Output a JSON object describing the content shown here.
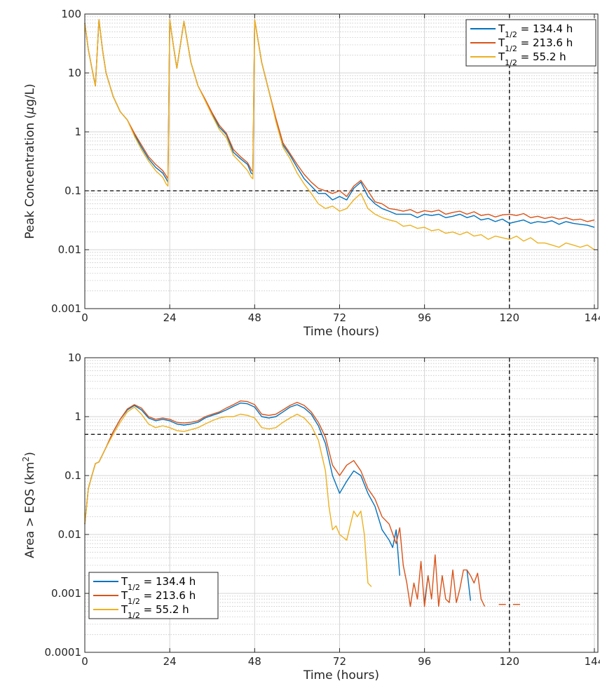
{
  "chart_data": [
    {
      "type": "line",
      "yscale": "log",
      "xlabel": "Time (hours)",
      "ylabel_pre": "Peak Concentration (",
      "ylabel_mu": "μ",
      "ylabel_post": "g/L)",
      "xlim": [
        0,
        145
      ],
      "ylim": [
        0.001,
        100
      ],
      "xticks": [
        "0",
        "24",
        "48",
        "72",
        "96",
        "120",
        "144"
      ],
      "yticks": [
        "0.001",
        "0.01",
        "0.1",
        "1",
        "10",
        "100"
      ],
      "grid": true,
      "legend_position": "top-right",
      "threshold_y": 0.1,
      "marker_x": 120,
      "colors": [
        "#0072BD",
        "#D95319",
        "#EDB120"
      ],
      "legend": [
        {
          "label": "T",
          "sub": "1/2",
          "rest": " = 134.4 h"
        },
        {
          "label": "T",
          "sub": "1/2",
          "rest": " = 213.6 h"
        },
        {
          "label": "T",
          "sub": "1/2",
          "rest": " = 55.2 h"
        }
      ],
      "series": [
        {
          "name": "T1/2 = 134.4 h",
          "x": [
            0,
            1,
            2,
            3,
            4,
            5,
            6,
            8,
            10,
            12,
            14,
            16,
            18,
            20,
            22,
            23,
            23.5,
            24,
            25,
            26,
            28,
            30,
            32,
            34,
            36,
            38,
            40,
            42,
            44,
            46,
            47,
            47.5,
            48,
            50,
            52,
            54,
            56,
            58,
            60,
            62,
            64,
            66,
            68,
            70,
            72,
            74,
            76,
            78,
            80,
            82,
            84,
            86,
            88,
            90,
            92,
            94,
            96,
            98,
            100,
            102,
            104,
            106,
            108,
            110,
            112,
            114,
            116,
            118,
            120,
            122,
            124,
            126,
            128,
            130,
            132,
            134,
            136,
            138,
            140,
            142,
            144
          ],
          "y": [
            70,
            25,
            12,
            6,
            80,
            25,
            10,
            4,
            2.2,
            1.6,
            0.9,
            0.55,
            0.35,
            0.25,
            0.2,
            0.16,
            0.14,
            80,
            30,
            12,
            75,
            15,
            6,
            3.5,
            2,
            1.2,
            0.9,
            0.45,
            0.35,
            0.28,
            0.2,
            0.19,
            80,
            15,
            5,
            1.6,
            0.6,
            0.4,
            0.25,
            0.16,
            0.12,
            0.09,
            0.09,
            0.07,
            0.08,
            0.07,
            0.11,
            0.14,
            0.08,
            0.06,
            0.05,
            0.045,
            0.04,
            0.04,
            0.04,
            0.035,
            0.04,
            0.038,
            0.04,
            0.035,
            0.037,
            0.04,
            0.035,
            0.038,
            0.032,
            0.034,
            0.03,
            0.033,
            0.028,
            0.03,
            0.032,
            0.028,
            0.03,
            0.029,
            0.031,
            0.027,
            0.03,
            0.028,
            0.027,
            0.026,
            0.024
          ]
        },
        {
          "name": "T1/2 = 213.6 h",
          "x": [
            0,
            1,
            2,
            3,
            4,
            5,
            6,
            8,
            10,
            12,
            14,
            16,
            18,
            20,
            22,
            23,
            23.5,
            24,
            25,
            26,
            28,
            30,
            32,
            34,
            36,
            38,
            40,
            42,
            44,
            46,
            47,
            47.5,
            48,
            50,
            52,
            54,
            56,
            58,
            60,
            62,
            64,
            66,
            68,
            70,
            72,
            74,
            76,
            78,
            80,
            82,
            84,
            86,
            88,
            90,
            92,
            94,
            96,
            98,
            100,
            102,
            104,
            106,
            108,
            110,
            112,
            114,
            116,
            118,
            120,
            122,
            124,
            126,
            128,
            130,
            132,
            134,
            136,
            138,
            140,
            142,
            144
          ],
          "y": [
            70,
            25,
            12,
            6,
            80,
            25,
            10,
            4,
            2.2,
            1.6,
            0.95,
            0.6,
            0.38,
            0.28,
            0.22,
            0.18,
            0.16,
            80,
            30,
            12,
            75,
            15,
            6,
            3.6,
            2.1,
            1.3,
            0.95,
            0.5,
            0.38,
            0.3,
            0.23,
            0.21,
            80,
            15,
            5,
            1.7,
            0.65,
            0.43,
            0.28,
            0.19,
            0.14,
            0.11,
            0.1,
            0.09,
            0.1,
            0.08,
            0.12,
            0.15,
            0.1,
            0.065,
            0.06,
            0.05,
            0.048,
            0.045,
            0.048,
            0.042,
            0.046,
            0.044,
            0.047,
            0.04,
            0.043,
            0.045,
            0.04,
            0.044,
            0.038,
            0.04,
            0.036,
            0.039,
            0.04,
            0.038,
            0.041,
            0.035,
            0.037,
            0.034,
            0.036,
            0.033,
            0.035,
            0.032,
            0.033,
            0.03,
            0.032
          ]
        },
        {
          "name": "T1/2 = 55.2 h",
          "x": [
            0,
            1,
            2,
            3,
            4,
            5,
            6,
            8,
            10,
            12,
            14,
            16,
            18,
            20,
            22,
            23,
            23.5,
            24,
            25,
            26,
            28,
            30,
            32,
            34,
            36,
            38,
            40,
            42,
            44,
            46,
            47,
            47.5,
            48,
            50,
            52,
            54,
            56,
            58,
            60,
            62,
            64,
            66,
            68,
            70,
            72,
            74,
            76,
            78,
            80,
            82,
            84,
            86,
            88,
            90,
            92,
            94,
            96,
            98,
            100,
            102,
            104,
            106,
            108,
            110,
            112,
            114,
            116,
            118,
            120,
            122,
            124,
            126,
            128,
            130,
            132,
            134,
            136,
            138,
            140,
            142,
            144
          ],
          "y": [
            70,
            25,
            12,
            6,
            80,
            25,
            10,
            4,
            2.2,
            1.6,
            0.85,
            0.5,
            0.32,
            0.22,
            0.17,
            0.13,
            0.12,
            80,
            30,
            12,
            75,
            15,
            6,
            3.4,
            1.9,
            1.1,
            0.8,
            0.4,
            0.3,
            0.22,
            0.17,
            0.16,
            80,
            15,
            5,
            1.5,
            0.55,
            0.35,
            0.2,
            0.13,
            0.09,
            0.06,
            0.05,
            0.055,
            0.045,
            0.05,
            0.07,
            0.09,
            0.05,
            0.04,
            0.035,
            0.032,
            0.03,
            0.025,
            0.026,
            0.023,
            0.024,
            0.021,
            0.022,
            0.019,
            0.02,
            0.018,
            0.02,
            0.017,
            0.018,
            0.015,
            0.017,
            0.016,
            0.015,
            0.017,
            0.014,
            0.016,
            0.013,
            0.013,
            0.012,
            0.011,
            0.013,
            0.012,
            0.011,
            0.012,
            0.01
          ]
        }
      ]
    },
    {
      "type": "line",
      "yscale": "log",
      "xlabel": "Time (hours)",
      "ylabel_pre": "Area > EQS (km",
      "ylabel_sup": "2",
      "ylabel_post": ")",
      "xlim": [
        0,
        145
      ],
      "ylim": [
        0.0001,
        10
      ],
      "xticks": [
        "0",
        "24",
        "48",
        "72",
        "96",
        "120",
        "144"
      ],
      "yticks": [
        "0.0001",
        "0.001",
        "0.01",
        "0.1",
        "1",
        "10"
      ],
      "grid": true,
      "legend_position": "bottom-left",
      "threshold_y": 0.5,
      "marker_x": 120,
      "colors": [
        "#0072BD",
        "#D95319",
        "#EDB120"
      ],
      "legend": [
        {
          "label": "T",
          "sub": "1/2",
          "rest": " = 134.4 h"
        },
        {
          "label": "T",
          "sub": "1/2",
          "rest": " = 213.6 h"
        },
        {
          "label": "T",
          "sub": "1/2",
          "rest": " = 55.2 h"
        }
      ],
      "series": [
        {
          "name": "T1/2 = 134.4 h",
          "segments": [
            {
              "x": [
                0,
                1,
                2,
                3,
                4,
                6,
                8,
                10,
                12,
                14,
                16,
                18,
                20,
                22,
                24,
                26,
                28,
                30,
                32,
                34,
                36,
                38,
                40,
                42,
                44,
                46,
                48,
                50,
                52,
                54,
                56,
                58,
                60,
                62,
                64,
                66,
                68,
                70,
                72,
                74,
                76,
                78,
                80,
                82,
                84,
                86,
                87,
                88,
                89
              ],
              "y": [
                0.015,
                0.06,
                0.1,
                0.16,
                0.17,
                0.3,
                0.55,
                0.9,
                1.3,
                1.55,
                1.3,
                0.95,
                0.85,
                0.9,
                0.85,
                0.75,
                0.72,
                0.75,
                0.8,
                0.95,
                1.05,
                1.15,
                1.3,
                1.5,
                1.7,
                1.65,
                1.45,
                1.0,
                0.95,
                1.0,
                1.2,
                1.45,
                1.6,
                1.4,
                1.1,
                0.7,
                0.35,
                0.1,
                0.05,
                0.08,
                0.12,
                0.1,
                0.05,
                0.03,
                0.012,
                0.008,
                0.006,
                0.012,
                0.002
              ]
            },
            {
              "x": [
                96,
                97
              ],
              "y": [
                0.0007,
                0.002
              ]
            },
            {
              "x": [
                108,
                109
              ],
              "y": [
                0.0025,
                0.00075
              ]
            }
          ]
        },
        {
          "name": "T1/2 = 213.6 h",
          "segments": [
            {
              "x": [
                0,
                1,
                2,
                3,
                4,
                6,
                8,
                10,
                12,
                14,
                16,
                18,
                20,
                22,
                24,
                26,
                28,
                30,
                32,
                34,
                36,
                38,
                40,
                42,
                44,
                46,
                48,
                50,
                52,
                54,
                56,
                58,
                60,
                62,
                64,
                66,
                68,
                70,
                72,
                74,
                76,
                78,
                80,
                82,
                84,
                86,
                88,
                89,
                90,
                91,
                92,
                93,
                94,
                95,
                96,
                97,
                98,
                99,
                100,
                101,
                102,
                103,
                104,
                105,
                106,
                107,
                108,
                109,
                110,
                111,
                112,
                113
              ],
              "y": [
                0.015,
                0.06,
                0.1,
                0.16,
                0.17,
                0.3,
                0.55,
                0.9,
                1.35,
                1.6,
                1.4,
                1.0,
                0.9,
                0.95,
                0.9,
                0.8,
                0.78,
                0.8,
                0.85,
                1.0,
                1.1,
                1.2,
                1.4,
                1.6,
                1.85,
                1.8,
                1.6,
                1.1,
                1.05,
                1.1,
                1.3,
                1.55,
                1.75,
                1.55,
                1.2,
                0.8,
                0.45,
                0.15,
                0.1,
                0.15,
                0.18,
                0.12,
                0.06,
                0.04,
                0.02,
                0.015,
                0.007,
                0.013,
                0.003,
                0.0015,
                0.0006,
                0.0015,
                0.0008,
                0.0035,
                0.0006,
                0.002,
                0.0008,
                0.0045,
                0.0006,
                0.002,
                0.0008,
                0.0007,
                0.0025,
                0.0007,
                0.0012,
                0.0025,
                0.0025,
                0.002,
                0.0015,
                0.0022,
                0.0008,
                0.0006
              ]
            },
            {
              "x": [
                117,
                118,
                119
              ],
              "y": [
                0.00065,
                0.00065,
                0.00065
              ]
            },
            {
              "x": [
                121,
                122,
                123
              ],
              "y": [
                0.00065,
                0.00065,
                0.00065
              ]
            }
          ]
        },
        {
          "name": "T1/2 = 55.2 h",
          "segments": [
            {
              "x": [
                0,
                1,
                2,
                3,
                4,
                6,
                8,
                10,
                12,
                14,
                16,
                18,
                20,
                22,
                24,
                26,
                28,
                30,
                32,
                34,
                36,
                38,
                40,
                42,
                44,
                46,
                48,
                50,
                52,
                54,
                56,
                58,
                60,
                62,
                64,
                66,
                68,
                69,
                70,
                71,
                72,
                74,
                76,
                77,
                78,
                79,
                80,
                81
              ],
              "y": [
                0.015,
                0.06,
                0.1,
                0.16,
                0.17,
                0.3,
                0.5,
                0.8,
                1.2,
                1.45,
                1.1,
                0.75,
                0.65,
                0.7,
                0.65,
                0.58,
                0.56,
                0.6,
                0.65,
                0.75,
                0.85,
                0.95,
                1.0,
                1.0,
                1.1,
                1.05,
                0.95,
                0.65,
                0.62,
                0.65,
                0.8,
                0.95,
                1.1,
                0.95,
                0.7,
                0.4,
                0.12,
                0.03,
                0.012,
                0.014,
                0.01,
                0.008,
                0.025,
                0.02,
                0.025,
                0.01,
                0.0015,
                0.0013
              ]
            }
          ]
        }
      ]
    }
  ]
}
